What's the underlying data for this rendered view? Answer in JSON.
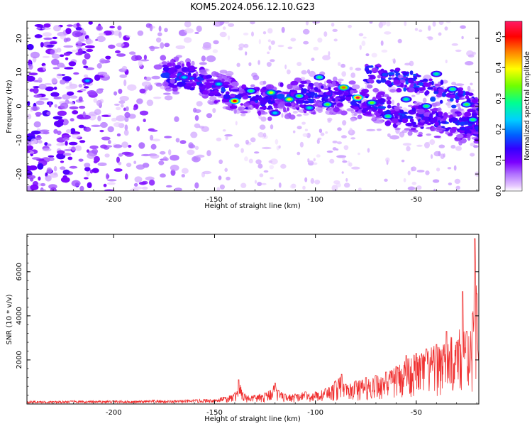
{
  "title": "KOM5.2024.056.12.10.G23",
  "chart_data": [
    {
      "type": "heatmap",
      "xlabel": "Height of straight line (km)",
      "ylabel": "Frequency (Hz)",
      "xlim": [
        -243,
        -19
      ],
      "ylim": [
        -25,
        25
      ],
      "xticks": [
        -200,
        -150,
        -100,
        -50
      ],
      "yticks": [
        -20,
        -10,
        0,
        10,
        20
      ],
      "colorbar": {
        "label": "Normalized spectral amplitude",
        "range": [
          0.0,
          0.55
        ],
        "ticks": [
          0.0,
          0.1,
          0.2,
          0.3,
          0.4,
          0.5
        ],
        "colormap": [
          "#ffffff",
          "#e6c8ff",
          "#b070ff",
          "#7b00ff",
          "#3300ff",
          "#0060ff",
          "#00d0ff",
          "#00ff90",
          "#70ff00",
          "#ffff00",
          "#ff8000",
          "#ff0000",
          "#ff1a66"
        ]
      },
      "ridge": {
        "x": [
          -170,
          -150,
          -140,
          -125,
          -110,
          -100,
          -90,
          -80,
          -70,
          -60,
          -50,
          -40,
          -30,
          -20
        ],
        "y": [
          9,
          6,
          3,
          2,
          3,
          3,
          3,
          2,
          0,
          -2,
          -3,
          -4,
          -5,
          -6
        ]
      },
      "ridge2": {
        "x": [
          -75,
          -60,
          -45,
          -35,
          -25,
          -20
        ],
        "y": [
          10,
          8,
          6,
          4,
          2,
          0
        ]
      },
      "hotspots": [
        {
          "x": -140,
          "y": 1.5,
          "v": 0.5
        },
        {
          "x": -122,
          "y": 4.0,
          "v": 0.38
        },
        {
          "x": -113,
          "y": 2.0,
          "v": 0.4
        },
        {
          "x": -108,
          "y": 3.0,
          "v": 0.32
        },
        {
          "x": -98,
          "y": 8.5,
          "v": 0.3
        },
        {
          "x": -94,
          "y": 0.5,
          "v": 0.33
        },
        {
          "x": -86,
          "y": 5.5,
          "v": 0.46
        },
        {
          "x": -79,
          "y": 2.5,
          "v": 0.53
        },
        {
          "x": -72,
          "y": 1.0,
          "v": 0.34
        },
        {
          "x": -64,
          "y": -3.0,
          "v": 0.3
        },
        {
          "x": -55,
          "y": 2.0,
          "v": 0.28
        },
        {
          "x": -45,
          "y": 0.0,
          "v": 0.3
        },
        {
          "x": -40,
          "y": 9.5,
          "v": 0.28
        },
        {
          "x": -32,
          "y": 5.0,
          "v": 0.3
        },
        {
          "x": -25,
          "y": 0.5,
          "v": 0.32
        },
        {
          "x": -22,
          "y": -4.0,
          "v": 0.3
        },
        {
          "x": -213,
          "y": 7.5,
          "v": 0.22
        },
        {
          "x": -165,
          "y": 8.5,
          "v": 0.24
        },
        {
          "x": -148,
          "y": 6.5,
          "v": 0.25
        },
        {
          "x": -132,
          "y": 4.5,
          "v": 0.3
        },
        {
          "x": -120,
          "y": -2.0,
          "v": 0.24
        },
        {
          "x": -103,
          "y": -0.5,
          "v": 0.26
        }
      ]
    },
    {
      "type": "line",
      "xlabel": "Height of straight line (km)",
      "ylabel": "SNR (10 * v/v)",
      "xlim": [
        -243,
        -19
      ],
      "ylim": [
        0,
        7700
      ],
      "xticks": [
        -200,
        -150,
        -100,
        -50
      ],
      "yticks": [
        2000,
        4000,
        6000
      ],
      "color": "#f03030",
      "series": [
        {
          "x": [
            -243,
            -230,
            -220,
            -210,
            -200,
            -190,
            -180,
            -170,
            -160,
            -150,
            -145,
            -140,
            -138,
            -135,
            -130,
            -125,
            -120,
            -118,
            -115,
            -110,
            -105,
            -100,
            -95,
            -90,
            -87,
            -85,
            -80,
            -75,
            -70,
            -65,
            -60,
            -55,
            -50,
            -45,
            -40,
            -35,
            -30,
            -27,
            -25,
            -22,
            -21,
            -20,
            -19
          ],
          "y": [
            120,
            110,
            130,
            120,
            140,
            120,
            150,
            140,
            170,
            200,
            300,
            500,
            1100,
            450,
            400,
            500,
            950,
            600,
            450,
            450,
            550,
            550,
            700,
            1050,
            1350,
            900,
            1050,
            1200,
            1300,
            1450,
            1700,
            2200,
            2300,
            2500,
            2700,
            3300,
            2800,
            5100,
            3300,
            4100,
            7500,
            5000,
            2000
          ]
        }
      ]
    }
  ]
}
